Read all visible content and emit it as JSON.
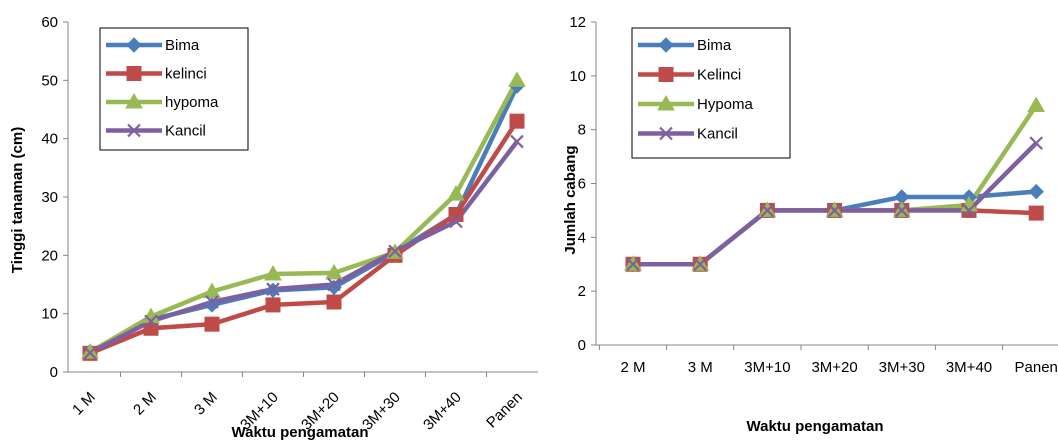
{
  "chart_data": [
    {
      "type": "line",
      "title": "",
      "xlabel": "Waktu pengamatan",
      "ylabel": "Tinggi tanaman (cm)",
      "ylim": [
        0,
        60
      ],
      "yticks": [
        0,
        10,
        20,
        30,
        40,
        50,
        60
      ],
      "grid": false,
      "legend": "top-left",
      "categories": [
        "1 M",
        "2 M",
        "3 M",
        "3M+10",
        "3M+20",
        "3M+30",
        "3M+40",
        "Panen"
      ],
      "series": [
        {
          "name": "Bima",
          "color": "#4a7ebb",
          "marker": "diamond",
          "values": [
            3.5,
            9,
            11.5,
            14,
            14.5,
            20.5,
            27,
            49
          ]
        },
        {
          "name": "kelinci",
          "color": "#be4b48",
          "marker": "square",
          "values": [
            3.2,
            7.5,
            8.2,
            11.5,
            12,
            20,
            27,
            43
          ]
        },
        {
          "name": "hypoma",
          "color": "#98b954",
          "marker": "triangle",
          "values": [
            3.4,
            9.5,
            13.8,
            16.8,
            17,
            20.5,
            30.5,
            50
          ]
        },
        {
          "name": "Kancil",
          "color": "#7d60a0",
          "marker": "x",
          "values": [
            3.3,
            8.7,
            12,
            14.2,
            15,
            20.7,
            25.8,
            39.5
          ]
        }
      ]
    },
    {
      "type": "line",
      "title": "",
      "xlabel": "Waktu pengamatan",
      "ylabel": "Jumlah cabang",
      "ylim": [
        0,
        12
      ],
      "yticks": [
        0,
        2,
        4,
        6,
        8,
        10,
        12
      ],
      "grid": false,
      "legend": "top-left",
      "categories": [
        "2 M",
        "3 M",
        "3M+10",
        "3M+20",
        "3M+30",
        "3M+40",
        "Panen"
      ],
      "series": [
        {
          "name": "Bima",
          "color": "#4a7ebb",
          "marker": "diamond",
          "values": [
            3,
            3,
            5,
            5,
            5.5,
            5.5,
            5.7
          ]
        },
        {
          "name": "Kelinci",
          "color": "#be4b48",
          "marker": "square",
          "values": [
            3,
            3,
            5,
            5,
            5,
            5,
            4.9
          ]
        },
        {
          "name": "Hypoma",
          "color": "#98b954",
          "marker": "triangle",
          "values": [
            3,
            3,
            5,
            5,
            5,
            5.2,
            8.9
          ]
        },
        {
          "name": "Kancil",
          "color": "#7d60a0",
          "marker": "x",
          "values": [
            3,
            3,
            5,
            5,
            5,
            5,
            7.5
          ]
        }
      ]
    }
  ]
}
